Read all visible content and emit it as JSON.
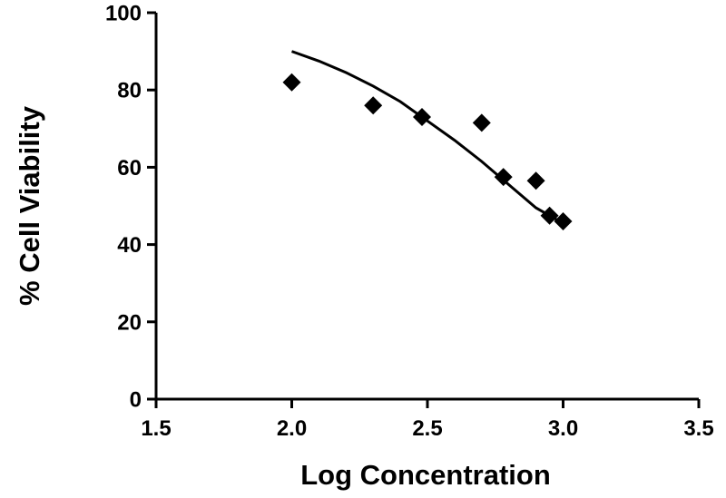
{
  "chart_data": {
    "type": "scatter",
    "xlabel": "Log Concentration",
    "ylabel": "% Cell Viability",
    "xlim": [
      1.5,
      3.5
    ],
    "ylim": [
      0,
      100
    ],
    "x_ticks": [
      "1.5",
      "2.0",
      "2.5",
      "3.0",
      "3.5"
    ],
    "y_ticks": [
      "0",
      "20",
      "40",
      "60",
      "80",
      "100"
    ],
    "grid": false,
    "legend": "none",
    "series": [
      {
        "marker": "diamond",
        "color": "#000000",
        "x": [
          2.0,
          2.3,
          2.48,
          2.7,
          2.78,
          2.9,
          2.95,
          3.0
        ],
        "y": [
          82,
          76,
          73,
          71.5,
          57.5,
          56.5,
          47.5,
          46
        ]
      }
    ],
    "fit_curve": {
      "style": "line",
      "color": "#000000",
      "x": [
        2.0,
        2.1,
        2.2,
        2.3,
        2.4,
        2.5,
        2.6,
        2.7,
        2.8,
        2.9,
        3.0
      ],
      "y": [
        90,
        87.5,
        84.5,
        81,
        77,
        72,
        67,
        61.5,
        55.5,
        49.5,
        45.5
      ]
    }
  }
}
